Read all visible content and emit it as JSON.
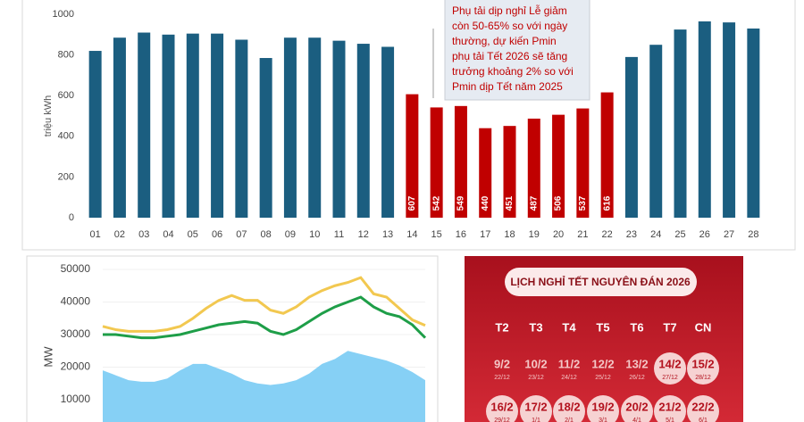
{
  "chart_data": [
    {
      "type": "bar",
      "y_label": "triệu kWh",
      "categories": [
        "01",
        "02",
        "03",
        "04",
        "05",
        "06",
        "07",
        "08",
        "09",
        "10",
        "11",
        "12",
        "13",
        "14",
        "15",
        "16",
        "17",
        "18",
        "19",
        "20",
        "21",
        "22",
        "23",
        "24",
        "25",
        "26",
        "27",
        "28"
      ],
      "values": [
        820,
        885,
        910,
        900,
        905,
        905,
        875,
        785,
        885,
        885,
        870,
        855,
        840,
        607,
        542,
        549,
        440,
        451,
        487,
        506,
        537,
        616,
        790,
        850,
        925,
        965,
        960,
        930
      ],
      "colors": [
        "#1b5e80",
        "#1b5e80",
        "#1b5e80",
        "#1b5e80",
        "#1b5e80",
        "#1b5e80",
        "#1b5e80",
        "#1b5e80",
        "#1b5e80",
        "#1b5e80",
        "#1b5e80",
        "#1b5e80",
        "#1b5e80",
        "#c00000",
        "#c00000",
        "#c00000",
        "#c00000",
        "#c00000",
        "#c00000",
        "#c00000",
        "#c00000",
        "#c00000",
        "#1b5e80",
        "#1b5e80",
        "#1b5e80",
        "#1b5e80",
        "#1b5e80",
        "#1b5e80"
      ],
      "ylim": [
        0,
        1000
      ],
      "yticks": [
        0,
        200,
        400,
        600,
        800,
        1000
      ],
      "annotation": [
        "Phụ tải dịp nghỉ Lễ giảm",
        "còn 50-65% so với ngày",
        "thường, dự kiến Pmin",
        "phụ tải Tết 2026 sẽ tăng",
        "trưởng khoảng 2% so với",
        "Pmin dịp Tết năm 2025"
      ]
    },
    {
      "type": "line",
      "y_label": "MW",
      "series": [
        {
          "type": "area",
          "color": "#86d0f5",
          "values": [
            19000,
            17500,
            16000,
            15500,
            15500,
            16500,
            19000,
            21000,
            21000,
            19500,
            18000,
            16000,
            15000,
            14500,
            15000,
            16000,
            18000,
            21000,
            22500,
            25000,
            24000,
            23000,
            22000,
            20500,
            18500,
            16000
          ]
        },
        {
          "type": "line",
          "color": "#f2c850",
          "values": [
            32500,
            31500,
            31000,
            31000,
            31000,
            31500,
            32500,
            35000,
            38000,
            40500,
            42000,
            40500,
            40500,
            37500,
            36500,
            38500,
            41500,
            43500,
            45000,
            46000,
            47500,
            42500,
            41500,
            38000,
            34500,
            32800
          ]
        },
        {
          "type": "line",
          "color": "#1e9e48",
          "values": [
            30000,
            30000,
            29500,
            29000,
            29000,
            29500,
            30000,
            31000,
            32000,
            33000,
            33500,
            34000,
            33500,
            31000,
            30000,
            31500,
            34000,
            36500,
            38500,
            40000,
            41500,
            38500,
            36500,
            35500,
            33000,
            29000
          ]
        }
      ],
      "ylim": [
        3000,
        52000
      ],
      "yticks": [
        10000,
        20000,
        30000,
        40000,
        50000
      ]
    }
  ],
  "calendar": {
    "title": "LỊCH NGHỈ TẾT NGUYÊN ĐÁN 2026",
    "weekdays": [
      "T2",
      "T3",
      "T4",
      "T5",
      "T6",
      "T7",
      "CN"
    ],
    "rows": [
      [
        {
          "date": "9/2",
          "lunar": "22/12",
          "holiday": false
        },
        {
          "date": "10/2",
          "lunar": "23/12",
          "holiday": false
        },
        {
          "date": "11/2",
          "lunar": "24/12",
          "holiday": false
        },
        {
          "date": "12/2",
          "lunar": "25/12",
          "holiday": false
        },
        {
          "date": "13/2",
          "lunar": "26/12",
          "holiday": false
        },
        {
          "date": "14/2",
          "lunar": "27/12",
          "holiday": true
        },
        {
          "date": "15/2",
          "lunar": "28/12",
          "holiday": true
        }
      ],
      [
        {
          "date": "16/2",
          "lunar": "29/12",
          "holiday": true
        },
        {
          "date": "17/2",
          "lunar": "1/1",
          "holiday": true
        },
        {
          "date": "18/2",
          "lunar": "2/1",
          "holiday": true
        },
        {
          "date": "19/2",
          "lunar": "3/1",
          "holiday": true
        },
        {
          "date": "20/2",
          "lunar": "4/1",
          "holiday": true
        },
        {
          "date": "21/2",
          "lunar": "5/1",
          "holiday": true
        },
        {
          "date": "22/2",
          "lunar": "6/1",
          "holiday": true
        }
      ]
    ]
  }
}
